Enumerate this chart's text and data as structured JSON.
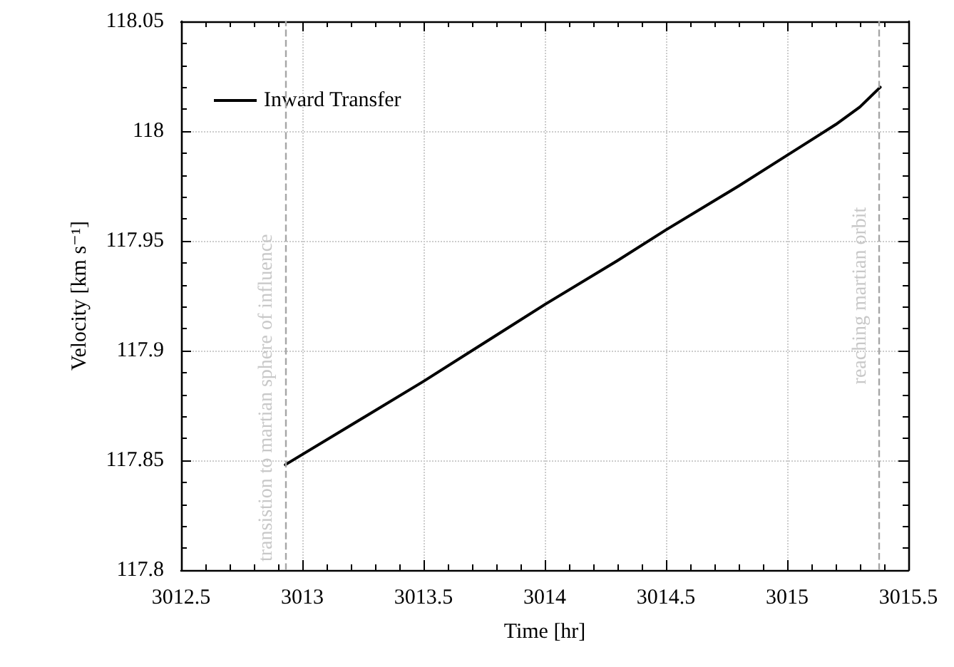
{
  "chart_data": {
    "type": "line",
    "xlabel": "Time [hr]",
    "ylabel": "Velocity [km s⁻¹]",
    "series": [
      {
        "name": "Inward Transfer",
        "color": "#000000",
        "x": [
          3012.93,
          3013.2,
          3013.5,
          3013.8,
          3014,
          3014.3,
          3014.5,
          3014.8,
          3015,
          3015.1,
          3015.2,
          3015.3,
          3015.384
        ],
        "values": [
          117.848,
          117.866,
          117.886,
          117.907,
          117.921,
          117.941,
          117.955,
          117.975,
          117.989,
          117.996,
          118.003,
          118.011,
          118.02
        ]
      }
    ],
    "xlim": [
      3012.5,
      3015.5
    ],
    "xticks": [
      3012.5,
      3013,
      3013.5,
      3014,
      3014.5,
      3015,
      3015.5
    ],
    "ylim": [
      117.8,
      118.05
    ],
    "yticks": [
      117.8,
      117.85,
      117.9,
      117.95,
      118,
      118.05
    ],
    "ref_lines": [
      {
        "axis": "x",
        "value": 3012.93,
        "label": "transistion to martian sphere of influence",
        "color": "#a6a6a6",
        "line_style": "dashed"
      },
      {
        "axis": "x",
        "value": 3015.384,
        "label": "reaching martian orbit",
        "color": "#a6a6a6",
        "line_style": "dashed"
      }
    ],
    "grid": true,
    "legend": "top left",
    "marker": "none",
    "line_style": "solid"
  }
}
